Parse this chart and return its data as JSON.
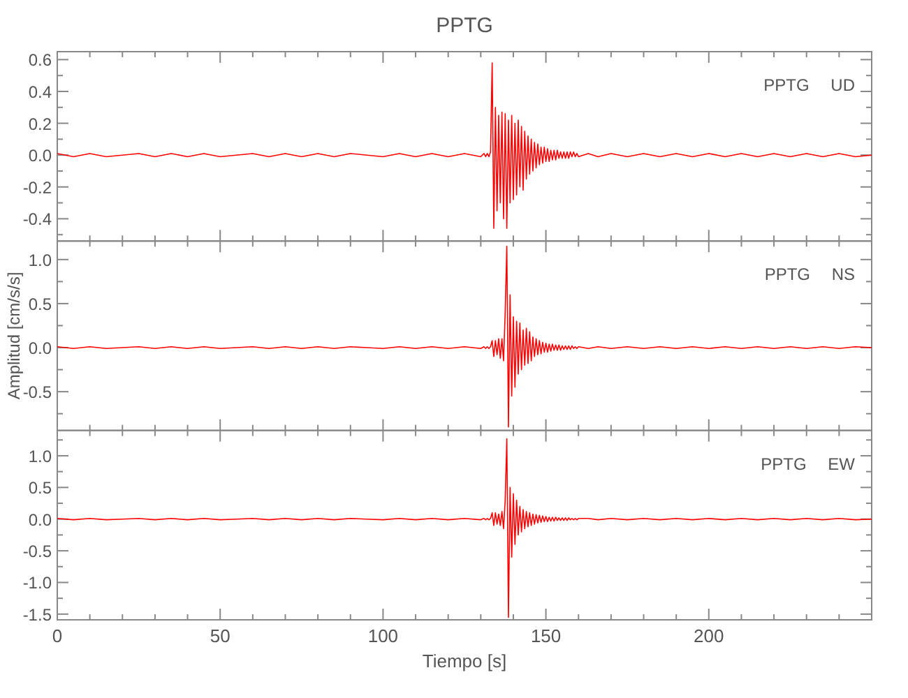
{
  "chart_data": [
    {
      "type": "line",
      "title": "PPTG",
      "annotations": [
        "PPTG UD"
      ],
      "tick_labels": "y",
      "xlim": [
        0,
        250
      ],
      "ylim": [
        -0.54,
        0.65
      ],
      "xticks": [
        0,
        {
          "value": 10,
          "label": null
        },
        {
          "value": 20,
          "label": null
        },
        {
          "value": 30,
          "label": null
        },
        {
          "value": 40,
          "label": null
        },
        50,
        {
          "value": 60,
          "label": null
        },
        {
          "value": 70,
          "label": null
        },
        {
          "value": 80,
          "label": null
        },
        {
          "value": 90,
          "label": null
        },
        100,
        {
          "value": 110,
          "label": null
        },
        {
          "value": 120,
          "label": null
        },
        {
          "value": 130,
          "label": null
        },
        {
          "value": 140,
          "label": null
        },
        150,
        {
          "value": 160,
          "label": null
        },
        {
          "value": 170,
          "label": null
        },
        {
          "value": 180,
          "label": null
        },
        {
          "value": 190,
          "label": null
        },
        200,
        {
          "value": 210,
          "label": null
        },
        {
          "value": 220,
          "label": null
        },
        {
          "value": 230,
          "label": null
        },
        {
          "value": 240,
          "label": null
        }
      ],
      "yticks": [
        {
          "value": -0.5,
          "label": null
        },
        {
          "value": -0.4,
          "label": "-0.4"
        },
        {
          "value": -0.3,
          "label": null
        },
        {
          "value": -0.2,
          "label": "-0.2"
        },
        {
          "value": -0.1,
          "label": null
        },
        {
          "value": 0,
          "label": "0.0"
        },
        {
          "value": 0.1,
          "label": null
        },
        {
          "value": 0.2,
          "label": "0.2"
        },
        {
          "value": 0.3,
          "label": null
        },
        {
          "value": 0.4,
          "label": "0.4"
        },
        {
          "value": 0.5,
          "label": null
        },
        {
          "value": 0.6,
          "label": "0.6"
        }
      ],
      "x": [
        0,
        5,
        10,
        15,
        20,
        25,
        30,
        35,
        40,
        45,
        50,
        55,
        60,
        65,
        70,
        75,
        80,
        85,
        90,
        95,
        100,
        105,
        110,
        115,
        120,
        125,
        130,
        131,
        131.5,
        132,
        132.5,
        133,
        133.5,
        134,
        134.5,
        135,
        135.5,
        136,
        136.5,
        137,
        137.5,
        138,
        138.5,
        139,
        139.5,
        140,
        140.5,
        141,
        141.5,
        142,
        142.5,
        143,
        143.5,
        144,
        144.5,
        145,
        145.5,
        146,
        146.5,
        147,
        147.5,
        148,
        148.5,
        149,
        149.5,
        150,
        150.5,
        151,
        151.5,
        152,
        152.5,
        153,
        153.5,
        154,
        154.5,
        155,
        155.5,
        156,
        156.5,
        157,
        157.5,
        158,
        158.5,
        159,
        159.5,
        160,
        163,
        166,
        170,
        175,
        180,
        185,
        190,
        195,
        200,
        205,
        210,
        215,
        220,
        225,
        230,
        235,
        240,
        245,
        250
      ],
      "series": [
        {
          "color": "#ff0000",
          "values": [
            0.01,
            -0.01,
            0.01,
            -0.01,
            0.0,
            0.01,
            -0.01,
            0.01,
            -0.01,
            0.01,
            -0.01,
            0.0,
            0.01,
            -0.01,
            0.01,
            -0.01,
            0.01,
            -0.01,
            0.01,
            0.0,
            -0.01,
            0.01,
            -0.01,
            0.01,
            -0.01,
            0.01,
            -0.01,
            0.01,
            -0.01,
            0.01,
            -0.01,
            0.02,
            0.58,
            -0.46,
            0.3,
            -0.35,
            0.25,
            -0.3,
            0.27,
            -0.4,
            0.26,
            -0.46,
            0.22,
            -0.3,
            0.25,
            -0.28,
            0.2,
            -0.25,
            0.22,
            -0.2,
            0.18,
            -0.22,
            0.15,
            -0.15,
            0.12,
            -0.12,
            0.1,
            -0.1,
            0.08,
            -0.08,
            0.07,
            -0.06,
            0.05,
            -0.05,
            0.05,
            -0.04,
            0.04,
            -0.04,
            0.03,
            -0.03,
            0.03,
            -0.03,
            0.03,
            -0.02,
            0.02,
            -0.02,
            0.02,
            -0.02,
            0.02,
            -0.02,
            0.02,
            -0.01,
            0.02,
            -0.01,
            0.01,
            -0.01,
            0.01,
            -0.01,
            0.01,
            -0.01,
            0.01,
            -0.01,
            0.01,
            -0.01,
            0.01,
            -0.01,
            0.01,
            -0.01,
            0.01,
            -0.01,
            0.01,
            -0.01,
            0.01,
            -0.01,
            0.0
          ]
        }
      ]
    },
    {
      "type": "line",
      "ylabel": "Amplitud [cm/s/s]",
      "annotations": [
        "PPTG NS"
      ],
      "tick_labels": "y",
      "xlim": [
        0,
        250
      ],
      "ylim": [
        -0.94,
        1.21
      ],
      "xticks": [
        0,
        {
          "value": 10,
          "label": null
        },
        {
          "value": 20,
          "label": null
        },
        {
          "value": 30,
          "label": null
        },
        {
          "value": 40,
          "label": null
        },
        50,
        {
          "value": 60,
          "label": null
        },
        {
          "value": 70,
          "label": null
        },
        {
          "value": 80,
          "label": null
        },
        {
          "value": 90,
          "label": null
        },
        100,
        {
          "value": 110,
          "label": null
        },
        {
          "value": 120,
          "label": null
        },
        {
          "value": 130,
          "label": null
        },
        {
          "value": 140,
          "label": null
        },
        150,
        {
          "value": 160,
          "label": null
        },
        {
          "value": 170,
          "label": null
        },
        {
          "value": 180,
          "label": null
        },
        {
          "value": 190,
          "label": null
        },
        200,
        {
          "value": 210,
          "label": null
        },
        {
          "value": 220,
          "label": null
        },
        {
          "value": 230,
          "label": null
        },
        {
          "value": 240,
          "label": null
        }
      ],
      "yticks": [
        {
          "value": -0.75,
          "label": null
        },
        {
          "value": -0.5,
          "label": "-0.5"
        },
        {
          "value": -0.25,
          "label": null
        },
        {
          "value": 0,
          "label": "0.0"
        },
        {
          "value": 0.25,
          "label": null
        },
        {
          "value": 0.5,
          "label": "0.5"
        },
        {
          "value": 0.75,
          "label": null
        },
        {
          "value": 1,
          "label": "1.0"
        }
      ],
      "x": [
        0,
        5,
        10,
        15,
        20,
        25,
        30,
        35,
        40,
        45,
        50,
        55,
        60,
        65,
        70,
        75,
        80,
        85,
        90,
        95,
        100,
        105,
        110,
        115,
        120,
        125,
        130,
        131,
        131.5,
        132,
        132.5,
        133,
        133.5,
        134,
        134.5,
        135,
        135.5,
        136,
        136.5,
        137,
        137.5,
        138,
        138.5,
        139,
        139.5,
        140,
        140.5,
        141,
        141.5,
        142,
        142.5,
        143,
        143.5,
        144,
        144.5,
        145,
        145.5,
        146,
        146.5,
        147,
        147.5,
        148,
        148.5,
        149,
        149.5,
        150,
        150.5,
        151,
        151.5,
        152,
        152.5,
        153,
        153.5,
        154,
        154.5,
        155,
        155.5,
        156,
        156.5,
        157,
        157.5,
        158,
        158.5,
        159,
        159.5,
        160,
        163,
        166,
        170,
        175,
        180,
        185,
        190,
        195,
        200,
        205,
        210,
        215,
        220,
        225,
        230,
        235,
        240,
        245,
        250
      ],
      "series": [
        {
          "color": "#ff0000",
          "values": [
            0.01,
            -0.01,
            0.01,
            -0.01,
            0.0,
            0.01,
            -0.01,
            0.01,
            -0.01,
            0.01,
            -0.01,
            0.0,
            0.01,
            -0.01,
            0.01,
            -0.01,
            0.01,
            -0.01,
            0.01,
            0.0,
            -0.01,
            0.01,
            -0.01,
            0.01,
            -0.01,
            0.01,
            -0.01,
            0.01,
            -0.01,
            0.01,
            -0.01,
            0.01,
            0.08,
            -0.1,
            0.08,
            -0.08,
            0.1,
            -0.12,
            0.1,
            -0.15,
            0.4,
            1.15,
            -0.9,
            0.6,
            -0.55,
            0.35,
            -0.45,
            0.3,
            -0.3,
            0.28,
            -0.25,
            0.2,
            -0.2,
            0.22,
            -0.18,
            0.18,
            -0.15,
            0.12,
            -0.1,
            0.1,
            -0.08,
            0.08,
            -0.07,
            0.06,
            -0.05,
            0.05,
            -0.05,
            0.04,
            -0.04,
            0.04,
            -0.03,
            0.03,
            -0.03,
            0.03,
            -0.03,
            0.02,
            -0.02,
            0.02,
            -0.02,
            0.02,
            -0.02,
            0.02,
            -0.01,
            0.01,
            -0.01,
            0.01,
            -0.01,
            0.01,
            -0.01,
            0.01,
            -0.01,
            0.01,
            -0.01,
            0.01,
            -0.01,
            0.01,
            -0.01,
            0.01,
            -0.01,
            0.01,
            -0.01,
            0.01,
            -0.01,
            0.01,
            0.0
          ]
        }
      ]
    },
    {
      "type": "line",
      "xlabel": "Tiempo [s]",
      "annotations": [
        "PPTG EW"
      ],
      "xlim": [
        0,
        250
      ],
      "ylim": [
        -1.59,
        1.4
      ],
      "xticks": [
        0,
        {
          "value": 10,
          "label": null
        },
        {
          "value": 20,
          "label": null
        },
        {
          "value": 30,
          "label": null
        },
        {
          "value": 40,
          "label": null
        },
        50,
        {
          "value": 60,
          "label": null
        },
        {
          "value": 70,
          "label": null
        },
        {
          "value": 80,
          "label": null
        },
        {
          "value": 90,
          "label": null
        },
        100,
        {
          "value": 110,
          "label": null
        },
        {
          "value": 120,
          "label": null
        },
        {
          "value": 130,
          "label": null
        },
        {
          "value": 140,
          "label": null
        },
        150,
        {
          "value": 160,
          "label": null
        },
        {
          "value": 170,
          "label": null
        },
        {
          "value": 180,
          "label": null
        },
        {
          "value": 190,
          "label": null
        },
        200,
        {
          "value": 210,
          "label": null
        },
        {
          "value": 220,
          "label": null
        },
        {
          "value": 230,
          "label": null
        },
        {
          "value": 240,
          "label": null
        }
      ],
      "yticks": [
        {
          "value": -1.5,
          "label": "-1.5"
        },
        {
          "value": -1.25,
          "label": null
        },
        {
          "value": -1,
          "label": "-1.0"
        },
        {
          "value": -0.75,
          "label": null
        },
        {
          "value": -0.5,
          "label": "-0.5"
        },
        {
          "value": -0.25,
          "label": null
        },
        {
          "value": 0,
          "label": "0.0"
        },
        {
          "value": 0.25,
          "label": null
        },
        {
          "value": 0.5,
          "label": "0.5"
        },
        {
          "value": 0.75,
          "label": null
        },
        {
          "value": 1,
          "label": "1.0"
        },
        {
          "value": 1.25,
          "label": null
        }
      ],
      "x": [
        0,
        5,
        10,
        15,
        20,
        25,
        30,
        35,
        40,
        45,
        50,
        55,
        60,
        65,
        70,
        75,
        80,
        85,
        90,
        95,
        100,
        105,
        110,
        115,
        120,
        125,
        130,
        131,
        131.5,
        132,
        132.5,
        133,
        133.5,
        134,
        134.5,
        135,
        135.5,
        136,
        136.5,
        137,
        137.5,
        138,
        138.5,
        139,
        139.5,
        140,
        140.5,
        141,
        141.5,
        142,
        142.5,
        143,
        143.5,
        144,
        144.5,
        145,
        145.5,
        146,
        146.5,
        147,
        147.5,
        148,
        148.5,
        149,
        149.5,
        150,
        150.5,
        151,
        151.5,
        152,
        152.5,
        153,
        153.5,
        154,
        154.5,
        155,
        155.5,
        156,
        156.5,
        157,
        157.5,
        158,
        158.5,
        159,
        159.5,
        160,
        163,
        166,
        170,
        175,
        180,
        185,
        190,
        195,
        200,
        205,
        210,
        215,
        220,
        225,
        230,
        235,
        240,
        245,
        250
      ],
      "series": [
        {
          "color": "#ff0000",
          "values": [
            0.01,
            -0.01,
            0.01,
            -0.01,
            0.0,
            0.01,
            -0.01,
            0.01,
            -0.01,
            0.01,
            -0.01,
            0.0,
            0.01,
            -0.01,
            0.01,
            -0.01,
            0.01,
            -0.01,
            0.01,
            0.0,
            -0.01,
            0.01,
            -0.01,
            0.01,
            -0.01,
            0.01,
            -0.01,
            0.01,
            -0.01,
            0.01,
            -0.01,
            0.01,
            0.1,
            -0.1,
            0.1,
            -0.08,
            0.08,
            -0.1,
            0.12,
            -0.15,
            0.3,
            1.27,
            -1.55,
            0.5,
            -0.6,
            0.4,
            -0.4,
            0.3,
            -0.25,
            0.2,
            -0.2,
            0.15,
            -0.15,
            0.12,
            -0.12,
            0.1,
            -0.1,
            0.08,
            -0.08,
            0.07,
            -0.06,
            0.06,
            -0.05,
            0.05,
            -0.04,
            0.04,
            -0.04,
            0.03,
            -0.03,
            0.03,
            -0.03,
            0.03,
            -0.02,
            0.02,
            -0.02,
            0.02,
            -0.02,
            0.02,
            -0.02,
            0.02,
            -0.01,
            0.01,
            -0.01,
            0.01,
            -0.01,
            0.01,
            0.01,
            -0.01,
            0.01,
            -0.01,
            0.01,
            -0.01,
            0.01,
            -0.01,
            0.01,
            -0.01,
            0.01,
            -0.01,
            0.01,
            -0.01,
            0.01,
            -0.01,
            0.01,
            -0.01,
            0.0
          ]
        }
      ]
    }
  ]
}
